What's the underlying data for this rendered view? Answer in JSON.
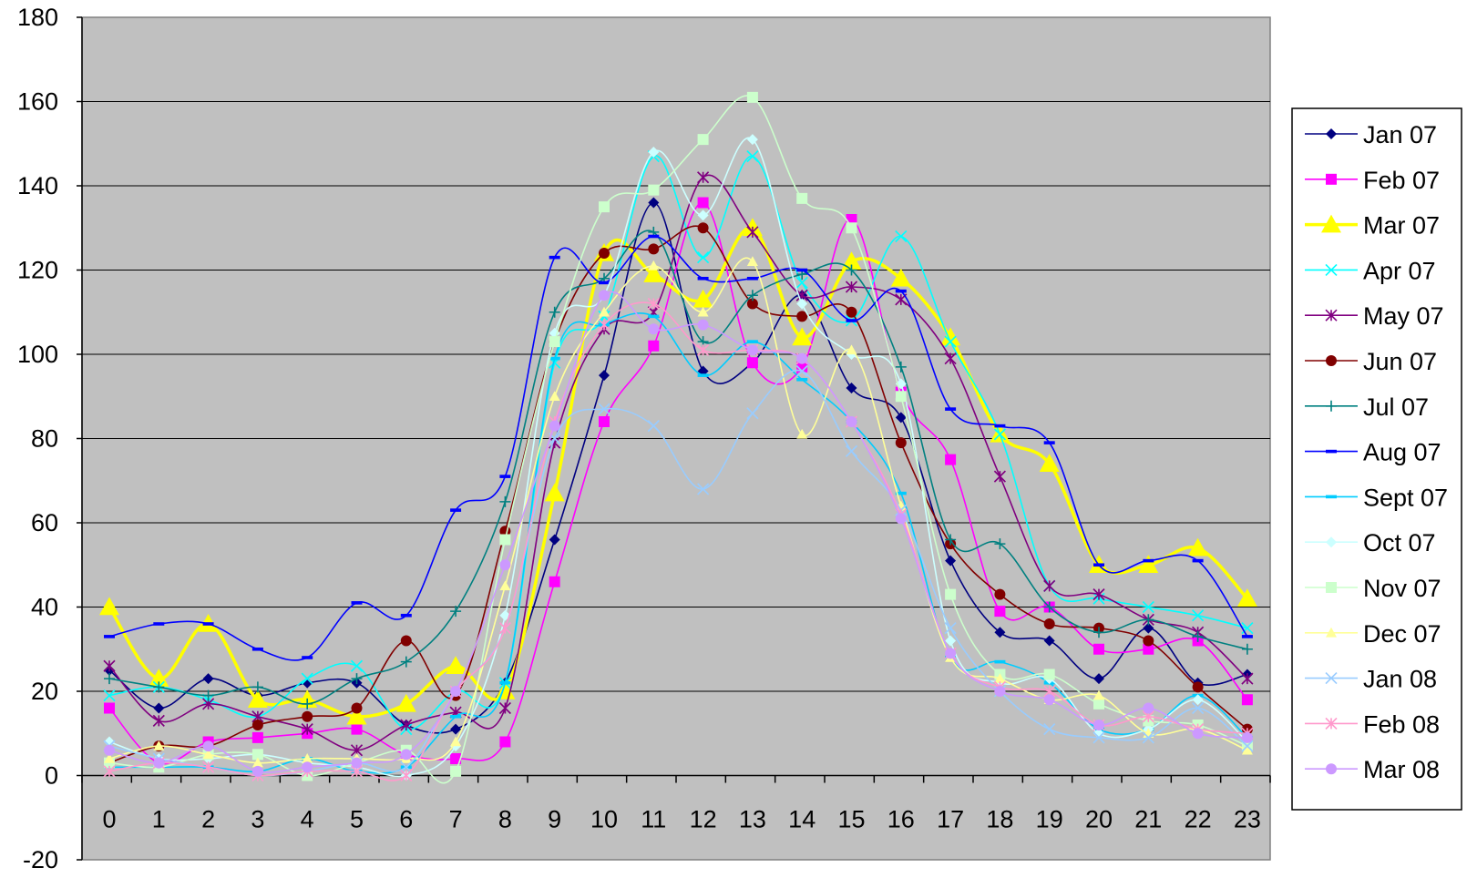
{
  "chart_data": {
    "type": "line",
    "title": "",
    "xlabel": "",
    "ylabel": "",
    "categories": [
      "0",
      "1",
      "2",
      "3",
      "4",
      "5",
      "6",
      "7",
      "8",
      "9",
      "10",
      "11",
      "12",
      "13",
      "14",
      "15",
      "16",
      "17",
      "18",
      "19",
      "20",
      "21",
      "22",
      "23"
    ],
    "ylim": [
      -20,
      180
    ],
    "yticks": [
      -20,
      0,
      20,
      40,
      60,
      80,
      100,
      120,
      140,
      160,
      180
    ],
    "grid": true,
    "plot_background": "#c0c0c0",
    "legend_position": "right",
    "series": [
      {
        "name": "Jan 07",
        "color": "#000080",
        "marker": "diamond",
        "values": [
          25,
          16,
          23,
          19,
          22,
          22,
          12,
          11,
          22,
          56,
          95,
          136,
          96,
          98,
          114,
          92,
          85,
          51,
          34,
          32,
          23,
          35,
          22,
          24
        ]
      },
      {
        "name": "Feb 07",
        "color": "#ff00ff",
        "marker": "square",
        "values": [
          16,
          3,
          8,
          9,
          10,
          11,
          5,
          4,
          8,
          46,
          84,
          102,
          136,
          98,
          97,
          132,
          91,
          75,
          39,
          40,
          30,
          30,
          32,
          18
        ]
      },
      {
        "name": "Mar 07",
        "color": "#ffff00",
        "marker": "triangle",
        "values": [
          40,
          23,
          36,
          18,
          18,
          14,
          17,
          26,
          20,
          67,
          124,
          119,
          113,
          130,
          104,
          122,
          118,
          104,
          81,
          74,
          50,
          50,
          54,
          42
        ]
      },
      {
        "name": "Apr 07",
        "color": "#00ffff",
        "marker": "x",
        "values": [
          19,
          21,
          18,
          14,
          23,
          26,
          11,
          20,
          22,
          98,
          109,
          147,
          123,
          147,
          117,
          108,
          128,
          103,
          81,
          45,
          42,
          40,
          38,
          35
        ]
      },
      {
        "name": "May 07",
        "color": "#800080",
        "marker": "star",
        "values": [
          26,
          13,
          17,
          14,
          11,
          6,
          12,
          15,
          16,
          79,
          106,
          110,
          142,
          129,
          114,
          116,
          113,
          99,
          71,
          45,
          43,
          37,
          34,
          23
        ]
      },
      {
        "name": "Jun 07",
        "color": "#800000",
        "marker": "circle",
        "values": [
          3,
          7,
          7,
          12,
          14,
          16,
          32,
          19,
          58,
          103,
          124,
          125,
          130,
          112,
          109,
          110,
          79,
          55,
          43,
          36,
          35,
          32,
          21,
          11
        ]
      },
      {
        "name": "Jul 07",
        "color": "#008080",
        "marker": "plus",
        "values": [
          23,
          21,
          19,
          21,
          17,
          23,
          27,
          39,
          65,
          110,
          118,
          129,
          103,
          114,
          119,
          120,
          97,
          56,
          55,
          40,
          34,
          37,
          33,
          30
        ]
      },
      {
        "name": "Aug 07",
        "color": "#0000ff",
        "marker": "dash",
        "values": [
          33,
          36,
          36,
          30,
          28,
          41,
          38,
          63,
          71,
          123,
          117,
          128,
          118,
          118,
          120,
          108,
          115,
          87,
          83,
          79,
          50,
          51,
          51,
          33
        ]
      },
      {
        "name": "Sept 07",
        "color": "#00ccff",
        "marker": "dash",
        "values": [
          2,
          2,
          2,
          1,
          4,
          1,
          2,
          14,
          22,
          99,
          107,
          109,
          95,
          103,
          94,
          84,
          67,
          28,
          27,
          22,
          11,
          11,
          19,
          9
        ]
      },
      {
        "name": "Oct 07",
        "color": "#ccffff",
        "marker": "diamond",
        "values": [
          8,
          4,
          4,
          5,
          3,
          2,
          0,
          7,
          38,
          105,
          114,
          148,
          133,
          151,
          112,
          100,
          93,
          32,
          22,
          23,
          10,
          11,
          18,
          8
        ]
      },
      {
        "name": "Nov 07",
        "color": "#ccffcc",
        "marker": "square",
        "values": [
          3,
          2,
          5,
          5,
          0,
          3,
          6,
          1,
          56,
          103,
          135,
          139,
          151,
          161,
          137,
          130,
          90,
          43,
          24,
          24,
          17,
          13,
          12,
          7
        ]
      },
      {
        "name": "Dec 07",
        "color": "#ffff99",
        "marker": "triangle",
        "values": [
          4,
          7,
          5,
          3,
          4,
          4,
          4,
          8,
          45,
          90,
          110,
          121,
          110,
          122,
          81,
          101,
          64,
          28,
          23,
          18,
          19,
          10,
          11,
          6
        ]
      },
      {
        "name": "Jan 08",
        "color": "#99ccff",
        "marker": "x",
        "values": [
          7,
          4,
          2,
          0,
          1,
          3,
          2,
          20,
          35,
          80,
          87,
          83,
          68,
          86,
          96,
          77,
          63,
          35,
          20,
          11,
          9,
          9,
          16,
          7
        ]
      },
      {
        "name": "Feb 08",
        "color": "#ff99cc",
        "marker": "star",
        "values": [
          1,
          3,
          2,
          0,
          1,
          1,
          0,
          20,
          35,
          84,
          107,
          112,
          101,
          101,
          99,
          84,
          62,
          29,
          21,
          20,
          12,
          14,
          11,
          10
        ]
      },
      {
        "name": "Mar 08",
        "color": "#cc99ff",
        "marker": "circle",
        "values": [
          6,
          3,
          7,
          1,
          2,
          3,
          5,
          20,
          50,
          83,
          114,
          106,
          107,
          101,
          99,
          84,
          61,
          29,
          20,
          18,
          12,
          16,
          10,
          9
        ]
      }
    ]
  }
}
